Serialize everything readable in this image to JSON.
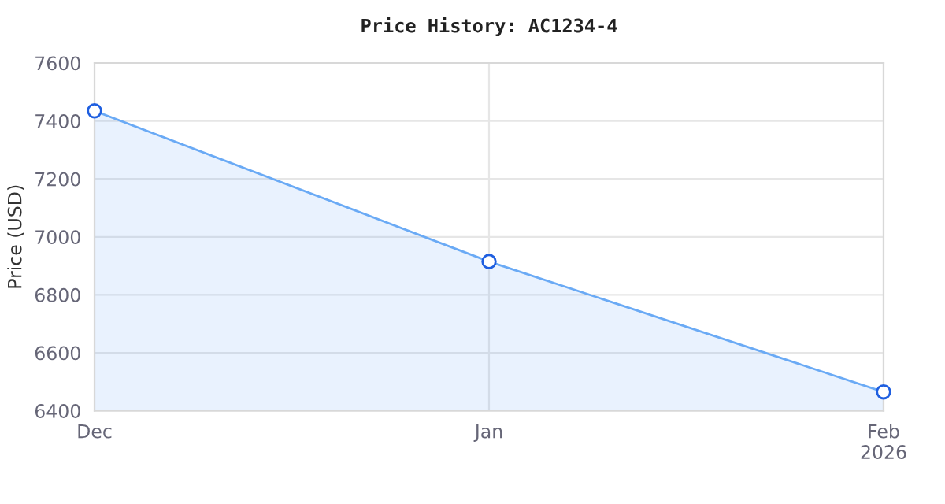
{
  "chart_data": {
    "type": "area",
    "title": "Price History: AC1234-4",
    "ylabel": "Price (USD)",
    "x": [
      "2025-12",
      "2026-01",
      "2026-02"
    ],
    "series": [
      {
        "color": "#6aaaf5",
        "values": [
          7435,
          6915,
          6465
        ]
      }
    ],
    "xlim": [
      "2025-12",
      "2026-02"
    ],
    "xticks": [
      {
        "value": "2025-12",
        "label": "Dec"
      },
      {
        "value": "2026-01",
        "label": "Jan"
      },
      {
        "value": "2026-02",
        "label": "Feb\n2026"
      }
    ],
    "ylim": [
      6400,
      7600
    ],
    "yticks": [
      6400,
      6600,
      6800,
      7000,
      7200,
      7400,
      7600
    ],
    "grid": true,
    "marker": "circle",
    "line_style": "solid"
  }
}
